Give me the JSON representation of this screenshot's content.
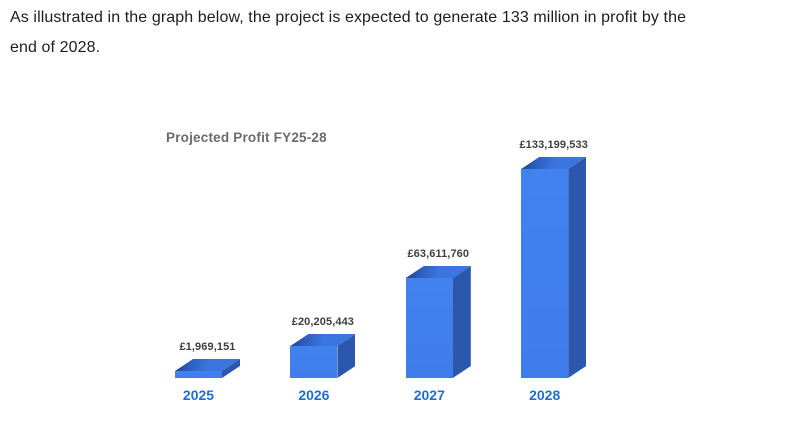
{
  "paragraph": {
    "text": "As illustrated in the graph below, the project is expected to generate 133 million in profit by the\nend of 2028."
  },
  "chart": {
    "colors": {
      "bar_front": "#4182ef",
      "bar_front_bottom": "#3f7dea",
      "bar_top": "#3b76e0",
      "bar_top_mid": "#2b5cba",
      "bar_top_shadow": "#1d3f7e",
      "bar_side": "#2b57ac",
      "year_label": "#1e6fd0",
      "value_label": "#3f3f3f",
      "title": "#6b6b6b"
    }
  },
  "chart_data": {
    "type": "bar",
    "variant": "3d-column",
    "title": "Projected Profit FY25-28",
    "categories": [
      "2025",
      "2026",
      "2027",
      "2028"
    ],
    "values": [
      1969151,
      20205443,
      63611760,
      133199533
    ],
    "value_labels": [
      "£1,969,151",
      "£20,205,443",
      "£63,611,760",
      "£133,199,533"
    ],
    "currency_symbol": "£",
    "xlabel": "",
    "ylabel": "",
    "ylim": [
      0,
      133199533
    ],
    "grid": false,
    "legend": false,
    "bar_color": "#4182ef"
  }
}
